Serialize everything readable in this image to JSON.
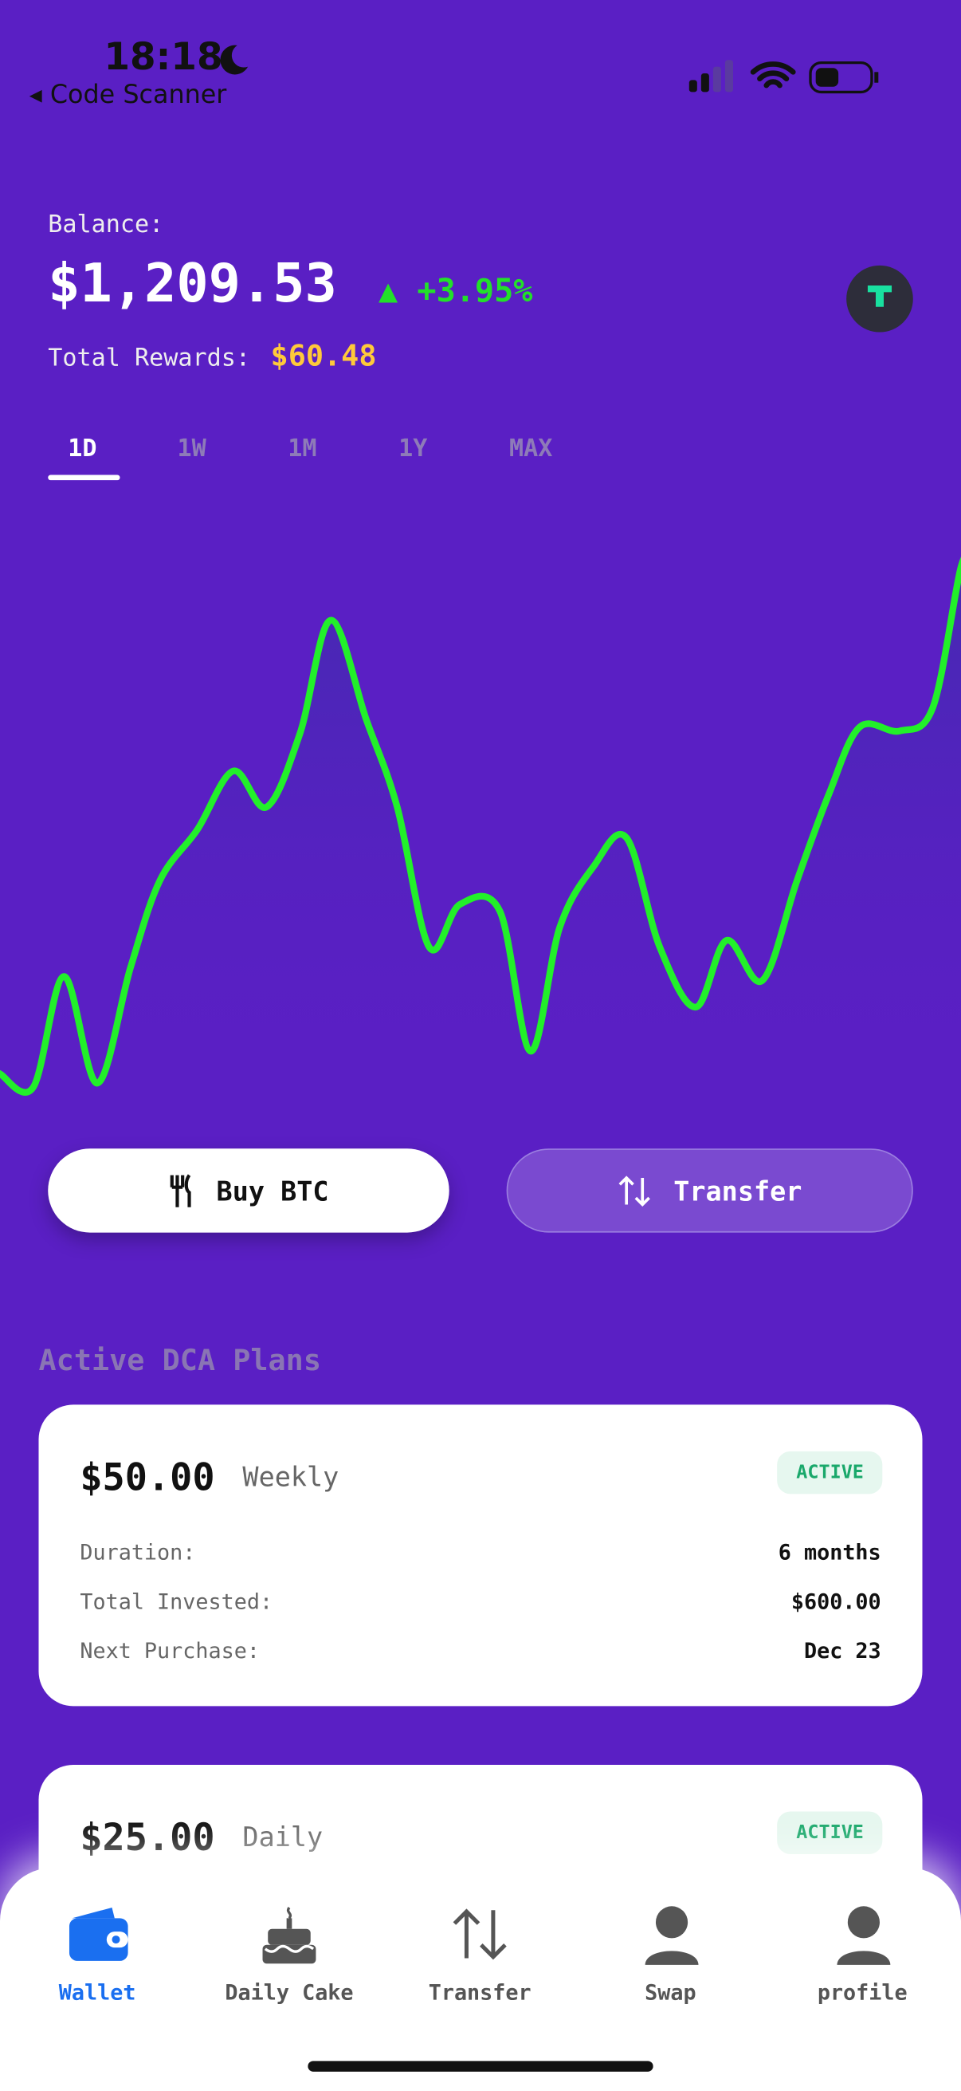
{
  "status": {
    "time": "18:18",
    "back": "Code Scanner"
  },
  "balance": {
    "label": "Balance:",
    "amount": "$1,209.53",
    "change": "+3.95%",
    "rewards_label": "Total Rewards:",
    "rewards": "$60.48"
  },
  "tabs": [
    "1D",
    "1W",
    "1M",
    "1Y",
    "MAX"
  ],
  "actions": [
    "Buy BTC",
    "Transfer"
  ],
  "plans_title": "Active DCA Plans",
  "plans": [
    {
      "amount": "$50.00",
      "frequency": "Weekly",
      "status": "ACTIVE",
      "rows": [
        [
          "Duration:",
          "6 months"
        ],
        [
          "Total Invested:",
          "$600.00"
        ],
        [
          "Next Purchase:",
          "Dec 23"
        ]
      ]
    },
    {
      "amount": "$25.00",
      "frequency": "Daily",
      "status": "ACTIVE"
    }
  ],
  "nav": [
    "Wallet",
    "Daily Cake",
    "Transfer",
    "Swap",
    "profile"
  ]
}
